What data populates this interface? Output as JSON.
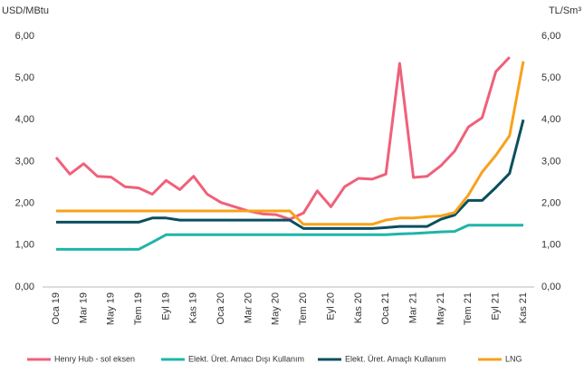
{
  "chart_data": {
    "type": "line",
    "y_label": "USD/MBtu",
    "y2_label": "TL/Sm³",
    "categories": [
      "Oca 19",
      null,
      "Mar 19",
      null,
      "May 19",
      null,
      "Tem 19",
      null,
      "Eyl 19",
      null,
      "Kas 19",
      null,
      "Oca 20",
      null,
      "Mar 20",
      null,
      "May 20",
      null,
      "Tem 20",
      null,
      "Eyl 20",
      null,
      "Kas 20",
      null,
      "Oca 21",
      null,
      "Mar 21",
      null,
      "May 21",
      null,
      "Tem 21",
      null,
      "Eyl 21",
      null,
      "Kas 21"
    ],
    "ylim": [
      0,
      6
    ],
    "yticks": [
      {
        "value": 0,
        "label": "0,00"
      },
      {
        "value": 1,
        "label": "1,00"
      },
      {
        "value": 2,
        "label": "2,00"
      },
      {
        "value": 3,
        "label": "3,00"
      },
      {
        "value": 4,
        "label": "4,00"
      },
      {
        "value": 5,
        "label": "5,00"
      },
      {
        "value": 6,
        "label": "6,00"
      }
    ],
    "y2lim": [
      0,
      6
    ],
    "y2ticks": [
      {
        "value": 0,
        "label": "0,00"
      },
      {
        "value": 1,
        "label": "1,00"
      },
      {
        "value": 2,
        "label": "2,00"
      },
      {
        "value": 3,
        "label": "3,00"
      },
      {
        "value": 4,
        "label": "4,00"
      },
      {
        "value": 5,
        "label": "5,00"
      },
      {
        "value": 6,
        "label": "6,00"
      }
    ],
    "series": [
      {
        "name": "Henry Hub - sol eksen",
        "color": "#f0607a",
        "values": [
          3.1,
          2.7,
          2.95,
          2.65,
          2.63,
          2.4,
          2.37,
          2.22,
          2.55,
          2.33,
          2.65,
          2.22,
          2.02,
          1.92,
          1.82,
          1.75,
          1.73,
          1.62,
          1.77,
          2.3,
          1.92,
          2.4,
          2.6,
          2.58,
          2.7,
          5.35,
          2.62,
          2.65,
          2.9,
          3.25,
          3.83,
          4.05,
          5.15,
          5.5,
          null
        ]
      },
      {
        "name": "Elekt. Üret. Amacı Dışı Kullanım",
        "color": "#1fb5a8",
        "axis": "y2",
        "values": [
          0.9,
          0.9,
          0.9,
          0.9,
          0.9,
          0.9,
          0.9,
          1.07,
          1.25,
          1.25,
          1.25,
          1.25,
          1.25,
          1.25,
          1.25,
          1.25,
          1.25,
          1.25,
          1.25,
          1.25,
          1.25,
          1.25,
          1.25,
          1.25,
          1.25,
          1.27,
          1.28,
          1.3,
          1.32,
          1.33,
          1.48,
          1.48,
          1.48,
          1.48,
          1.48
        ]
      },
      {
        "name": "Elekt. Üret. Amaçlı Kullanım",
        "color": "#0b4f5e",
        "axis": "y2",
        "values": [
          1.55,
          1.55,
          1.55,
          1.55,
          1.55,
          1.55,
          1.55,
          1.65,
          1.65,
          1.6,
          1.6,
          1.6,
          1.6,
          1.6,
          1.6,
          1.6,
          1.6,
          1.6,
          1.4,
          1.4,
          1.4,
          1.4,
          1.4,
          1.4,
          1.42,
          1.45,
          1.45,
          1.45,
          1.62,
          1.72,
          2.07,
          2.07,
          2.38,
          2.72,
          4.0
        ]
      },
      {
        "name": "LNG",
        "color": "#f7a21b",
        "axis": "y2",
        "values": [
          1.82,
          1.82,
          1.82,
          1.82,
          1.82,
          1.82,
          1.82,
          1.82,
          1.82,
          1.82,
          1.82,
          1.82,
          1.82,
          1.82,
          1.82,
          1.82,
          1.82,
          1.82,
          1.5,
          1.5,
          1.5,
          1.5,
          1.5,
          1.5,
          1.6,
          1.65,
          1.65,
          1.68,
          1.7,
          1.78,
          2.2,
          2.75,
          3.15,
          3.62,
          5.4
        ]
      }
    ]
  }
}
